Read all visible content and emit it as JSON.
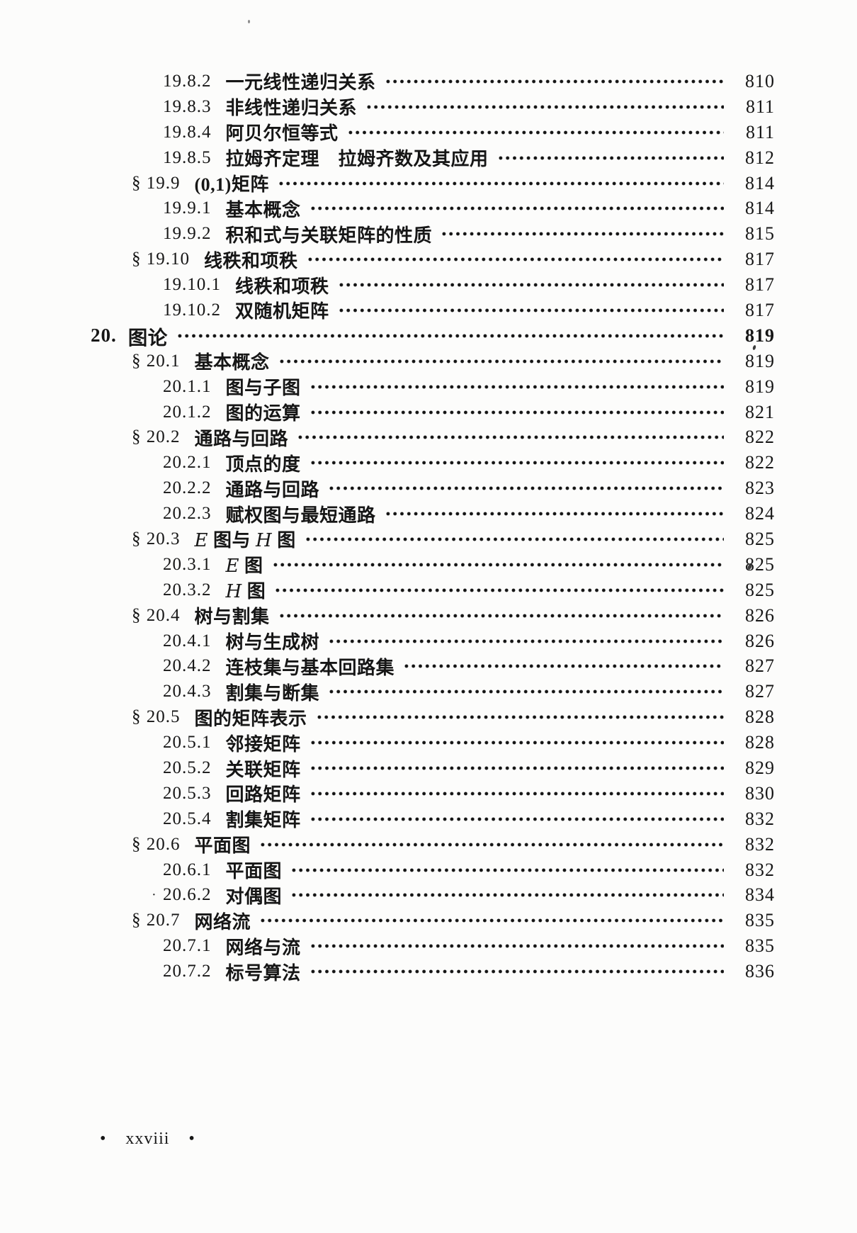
{
  "toc": {
    "entries": [
      {
        "level": 3,
        "num": "19.8.2",
        "title": "一元线性递归关系",
        "page": "810"
      },
      {
        "level": 3,
        "num": "19.8.3",
        "title": "非线性递归关系",
        "page": "811"
      },
      {
        "level": 3,
        "num": "19.8.4",
        "title": "阿贝尔恒等式",
        "page": "811"
      },
      {
        "level": 3,
        "num": "19.8.5",
        "title": "拉姆齐定理　拉姆齐数及其应用",
        "page": "812"
      },
      {
        "level": 2,
        "num": "§ 19.9",
        "title": "(0,1)矩阵",
        "page": "814"
      },
      {
        "level": 3,
        "num": "19.9.1",
        "title": "基本概念",
        "page": "814"
      },
      {
        "level": 3,
        "num": "19.9.2",
        "title": "积和式与关联矩阵的性质",
        "page": "815"
      },
      {
        "level": 2,
        "num": "§ 19.10",
        "title": "线秩和项秩",
        "page": "817"
      },
      {
        "level": 3,
        "num": "19.10.1",
        "title": "线秩和项秩",
        "page": "817"
      },
      {
        "level": 3,
        "num": "19.10.2",
        "title": "双随机矩阵",
        "page": "817"
      },
      {
        "level": 1,
        "num": "20.",
        "title": "图论",
        "page": "819"
      },
      {
        "level": 2,
        "num": "§ 20.1",
        "title": "基本概念",
        "page": "819"
      },
      {
        "level": 3,
        "num": "20.1.1",
        "title": "图与子图",
        "page": "819"
      },
      {
        "level": 3,
        "num": "20.1.2",
        "title": "图的运算",
        "page": "821"
      },
      {
        "level": 2,
        "num": "§ 20.2",
        "title": "通路与回路",
        "page": "822"
      },
      {
        "level": 3,
        "num": "20.2.1",
        "title": "顶点的度",
        "page": "822"
      },
      {
        "level": 3,
        "num": "20.2.2",
        "title": "通路与回路",
        "page": "823"
      },
      {
        "level": 3,
        "num": "20.2.3",
        "title": "赋权图与最短通路",
        "page": "824"
      },
      {
        "level": 2,
        "num": "§ 20.3",
        "title": "E 图与 H 图",
        "page": "825"
      },
      {
        "level": 3,
        "num": "20.3.1",
        "title": "E 图",
        "page": "825"
      },
      {
        "level": 3,
        "num": "20.3.2",
        "title": "H 图",
        "page": "825"
      },
      {
        "level": 2,
        "num": "§ 20.4",
        "title": "树与割集",
        "page": "826"
      },
      {
        "level": 3,
        "num": "20.4.1",
        "title": "树与生成树",
        "page": "826"
      },
      {
        "level": 3,
        "num": "20.4.2",
        "title": "连枝集与基本回路集",
        "page": "827"
      },
      {
        "level": 3,
        "num": "20.4.3",
        "title": "割集与断集",
        "page": "827"
      },
      {
        "level": 2,
        "num": "§ 20.5",
        "title": "图的矩阵表示",
        "page": "828"
      },
      {
        "level": 3,
        "num": "20.5.1",
        "title": "邻接矩阵",
        "page": "828"
      },
      {
        "level": 3,
        "num": "20.5.2",
        "title": "关联矩阵",
        "page": "829"
      },
      {
        "level": 3,
        "num": "20.5.3",
        "title": "回路矩阵",
        "page": "830"
      },
      {
        "level": 3,
        "num": "20.5.4",
        "title": "割集矩阵",
        "page": "832"
      },
      {
        "level": 2,
        "num": "§ 20.6",
        "title": "平面图",
        "page": "832"
      },
      {
        "level": 3,
        "num": "20.6.1",
        "title": "平面图",
        "page": "832"
      },
      {
        "level": 3,
        "num": "20.6.2",
        "title": "对偶图",
        "page": "834",
        "premark": "·"
      },
      {
        "level": 2,
        "num": "§ 20.7",
        "title": "网络流",
        "page": "835"
      },
      {
        "level": 3,
        "num": "20.7.1",
        "title": "网络与流",
        "page": "835"
      },
      {
        "level": 3,
        "num": "20.7.2",
        "title": "标号算法",
        "page": "836"
      }
    ]
  },
  "footer": {
    "left_bullet": "•",
    "page_roman": "xxviii",
    "right_bullet": "•"
  }
}
